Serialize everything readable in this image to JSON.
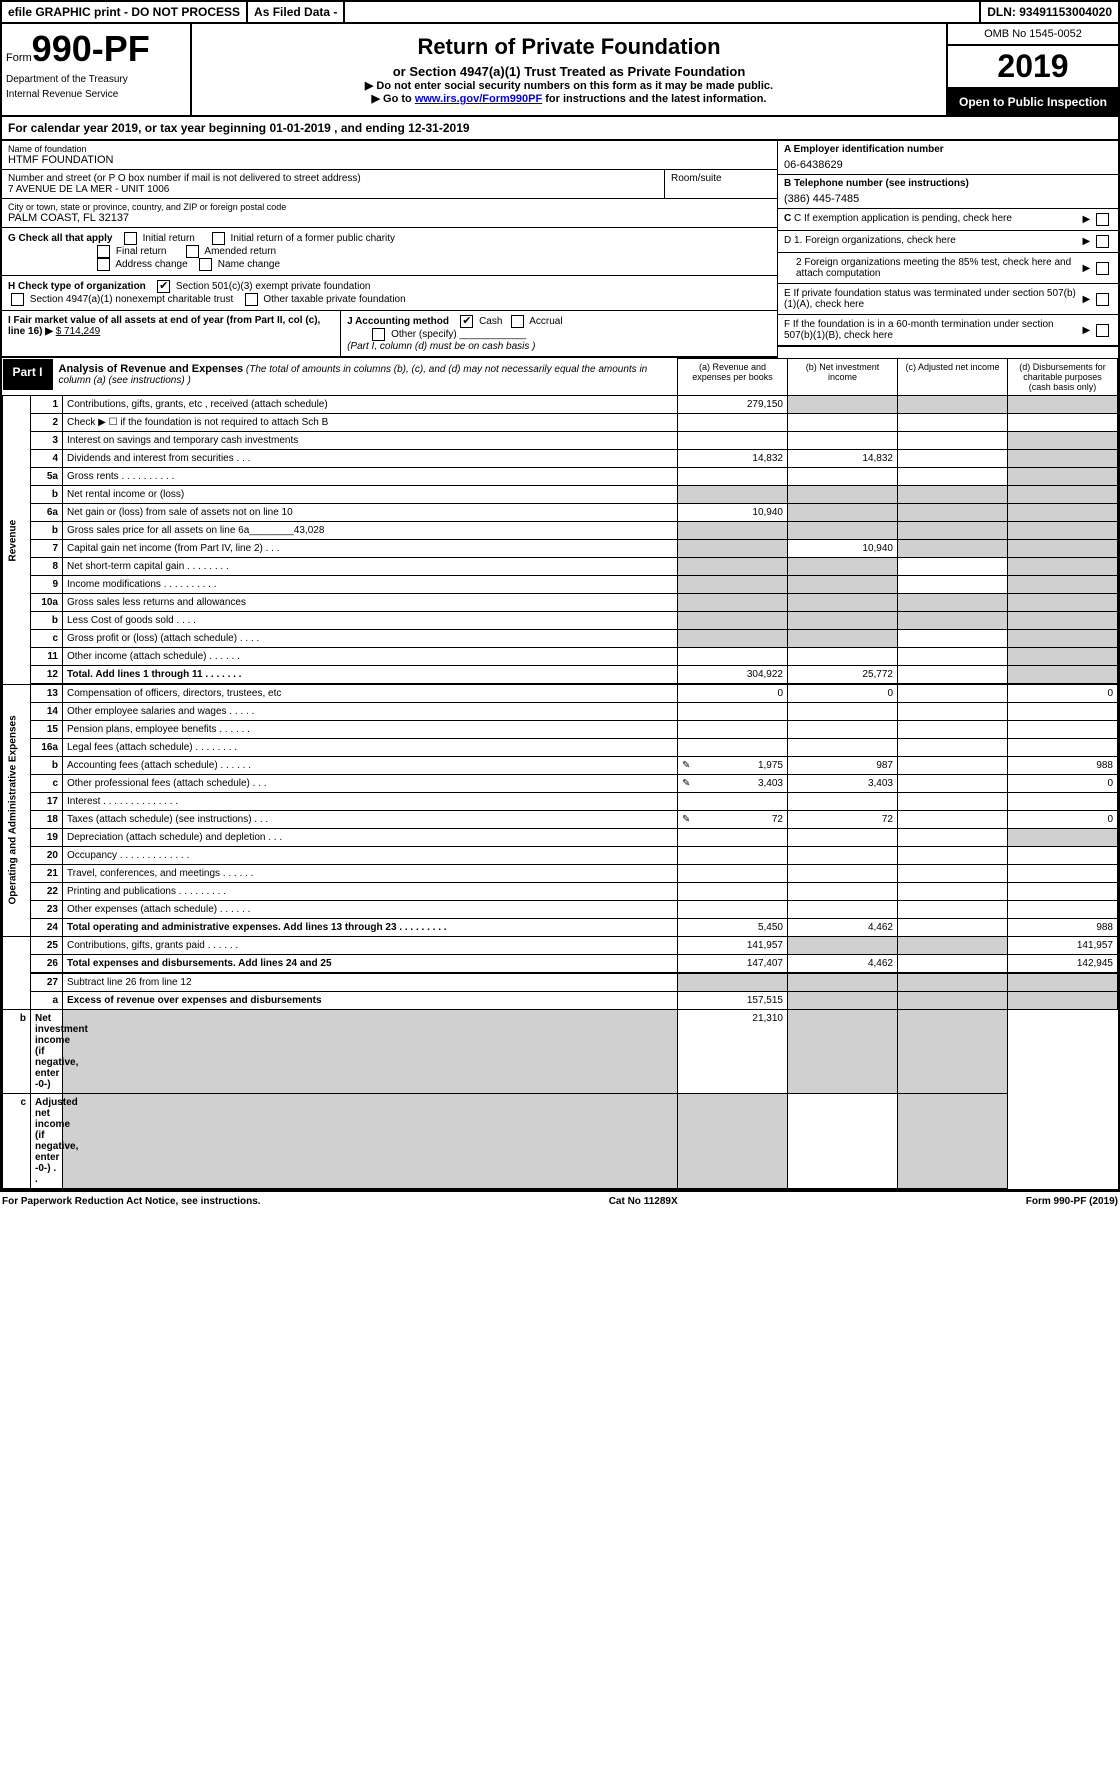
{
  "topbar": {
    "efile": "efile GRAPHIC print - DO NOT PROCESS",
    "as_filed": "As Filed Data -",
    "dln": "DLN: 93491153004020"
  },
  "header": {
    "form_prefix": "Form",
    "form_number": "990-PF",
    "dept1": "Department of the Treasury",
    "dept2": "Internal Revenue Service",
    "title": "Return of Private Foundation",
    "subtitle": "or Section 4947(a)(1) Trust Treated as Private Foundation",
    "inst1": "▶ Do not enter social security numbers on this form as it may be made public.",
    "inst2_pre": "▶ Go to ",
    "inst2_link": "www.irs.gov/Form990PF",
    "inst2_post": " for instructions and the latest information.",
    "omb": "OMB No 1545-0052",
    "year": "2019",
    "open": "Open to Public Inspection"
  },
  "cal_year": "For calendar year 2019, or tax year beginning 01-01-2019             , and ending 12-31-2019",
  "info": {
    "name_label": "Name of foundation",
    "name_value": "HTMF FOUNDATION",
    "ein_label": "A Employer identification number",
    "ein_value": "06-6438629",
    "addr_label": "Number and street (or P O  box number if mail is not delivered to street address)",
    "addr_value": "7 AVENUE DE LA MER - UNIT 1006",
    "room_label": "Room/suite",
    "phone_label": "B Telephone number (see instructions)",
    "phone_value": "(386) 445-7485",
    "city_label": "City or town, state or province, country, and ZIP or foreign postal code",
    "city_value": "PALM COAST, FL  32137",
    "c_label": "C If exemption application is pending, check here"
  },
  "g": {
    "label": "G Check all that apply",
    "initial": "Initial return",
    "initial_former": "Initial return of a former public charity",
    "final": "Final return",
    "amended": "Amended return",
    "addr_change": "Address change",
    "name_change": "Name change"
  },
  "h": {
    "label": "H Check type of organization",
    "opt1": "Section 501(c)(3) exempt private foundation",
    "opt2": "Section 4947(a)(1) nonexempt charitable trust",
    "opt3": "Other taxable private foundation"
  },
  "i": {
    "label": "I Fair market value of all assets at end of year (from Part II, col  (c), line 16) ▶",
    "value": "$  714,249"
  },
  "j": {
    "label": "J Accounting method",
    "cash": "Cash",
    "accrual": "Accrual",
    "other": "Other (specify)",
    "note": "(Part I, column (d) must be on cash basis )"
  },
  "right": {
    "d1": "D 1. Foreign organizations, check here",
    "d2": "2  Foreign organizations meeting the 85% test, check here and attach computation",
    "e": "E  If private foundation status was terminated under section 507(b)(1)(A), check here",
    "f": "F  If the foundation is in a 60-month termination under section 507(b)(1)(B), check here"
  },
  "part1": {
    "label": "Part I",
    "title": "Analysis of Revenue and Expenses",
    "desc": " (The total of amounts in columns (b), (c), and (d) may not necessarily equal the amounts in column (a) (see instructions) )",
    "cols": {
      "a": "(a) Revenue and expenses per books",
      "b": "(b) Net investment income",
      "c": "(c) Adjusted net income",
      "d": "(d) Disbursements for charitable purposes (cash basis only)"
    },
    "side_rev": "Revenue",
    "side_exp": "Operating and Administrative Expenses",
    "rows": [
      {
        "n": "1",
        "desc": "Contributions, gifts, grants, etc , received (attach schedule)",
        "a": "279,150",
        "b": "",
        "c": "",
        "d": "",
        "gb": true,
        "gc": true,
        "gd": true
      },
      {
        "n": "2",
        "desc": "Check ▶ ☐ if the foundation is not required to attach Sch  B",
        "nocols": true
      },
      {
        "n": "3",
        "desc": "Interest on savings and temporary cash investments",
        "a": "",
        "b": "",
        "c": "",
        "d": "",
        "gd": true
      },
      {
        "n": "4",
        "desc": "Dividends and interest from securities   .   .   .",
        "a": "14,832",
        "b": "14,832",
        "c": "",
        "d": "",
        "gd": true
      },
      {
        "n": "5a",
        "desc": "Gross rents       .   .   .   .   .   .   .   .   .   .",
        "a": "",
        "b": "",
        "c": "",
        "d": "",
        "gd": true
      },
      {
        "n": "b",
        "desc": "Net rental income or (loss)  ",
        "a": "",
        "b": "",
        "c": "",
        "d": "",
        "ga": true,
        "gb": true,
        "gc": true,
        "gd": true,
        "inline": true
      },
      {
        "n": "6a",
        "desc": "Net gain or (loss) from sale of assets not on line 10",
        "a": "10,940",
        "b": "",
        "c": "",
        "d": "",
        "gb": true,
        "gc": true,
        "gd": true
      },
      {
        "n": "b",
        "desc": "Gross sales price for all assets on line 6a________43,028",
        "a": "",
        "b": "",
        "c": "",
        "d": "",
        "ga": true,
        "gb": true,
        "gc": true,
        "gd": true
      },
      {
        "n": "7",
        "desc": "Capital gain net income (from Part IV, line 2)   .   .   .",
        "a": "",
        "b": "10,940",
        "c": "",
        "d": "",
        "ga": true,
        "gc": true,
        "gd": true
      },
      {
        "n": "8",
        "desc": "Net short-term capital gain  .   .   .   .   .   .   .   .",
        "a": "",
        "b": "",
        "c": "",
        "d": "",
        "ga": true,
        "gb": true,
        "gd": true
      },
      {
        "n": "9",
        "desc": "Income modifications .   .   .   .   .   .   .   .   .   .",
        "a": "",
        "b": "",
        "c": "",
        "d": "",
        "ga": true,
        "gb": true,
        "gd": true
      },
      {
        "n": "10a",
        "desc": "Gross sales less returns and allowances ",
        "a": "",
        "b": "",
        "c": "",
        "d": "",
        "ga": true,
        "gb": true,
        "gc": true,
        "gd": true,
        "inline": true
      },
      {
        "n": "b",
        "desc": "Less  Cost of goods sold    .   .   .   . ",
        "a": "",
        "b": "",
        "c": "",
        "d": "",
        "ga": true,
        "gb": true,
        "gc": true,
        "gd": true,
        "inline": true
      },
      {
        "n": "c",
        "desc": "Gross profit or (loss) (attach schedule)   .   .   .   .",
        "a": "",
        "b": "",
        "c": "",
        "d": "",
        "ga": true,
        "gb": true,
        "gd": true
      },
      {
        "n": "11",
        "desc": "Other income (attach schedule)    .   .   .   .   .   .",
        "a": "",
        "b": "",
        "c": "",
        "d": "",
        "gd": true
      },
      {
        "n": "12",
        "desc": "Total. Add lines 1 through 11   .   .   .   .   .   .   .",
        "bold": true,
        "a": "304,922",
        "b": "25,772",
        "c": "",
        "d": "",
        "gd": true
      },
      {
        "n": "13",
        "desc": "Compensation of officers, directors, trustees, etc",
        "a": "0",
        "b": "0",
        "c": "",
        "d": "0",
        "top": true
      },
      {
        "n": "14",
        "desc": "Other employee salaries and wages    .   .   .   .   .",
        "a": "",
        "b": "",
        "c": "",
        "d": ""
      },
      {
        "n": "15",
        "desc": "Pension plans, employee benefits  .   .   .   .   .   .",
        "a": "",
        "b": "",
        "c": "",
        "d": ""
      },
      {
        "n": "16a",
        "desc": "Legal fees (attach schedule) .   .   .   .   .   .   .   .",
        "a": "",
        "b": "",
        "c": "",
        "d": ""
      },
      {
        "n": "b",
        "desc": "Accounting fees (attach schedule) .   .   .   .   .   .",
        "icon": true,
        "a": "1,975",
        "b": "987",
        "c": "",
        "d": "988"
      },
      {
        "n": "c",
        "desc": "Other professional fees (attach schedule)   .   .   .",
        "icon": true,
        "a": "3,403",
        "b": "3,403",
        "c": "",
        "d": "0"
      },
      {
        "n": "17",
        "desc": "Interest  .   .   .   .   .   .   .   .   .   .   .   .   .   .",
        "a": "",
        "b": "",
        "c": "",
        "d": ""
      },
      {
        "n": "18",
        "desc": "Taxes (attach schedule) (see instructions)    .   .   .",
        "icon": true,
        "a": "72",
        "b": "72",
        "c": "",
        "d": "0"
      },
      {
        "n": "19",
        "desc": "Depreciation (attach schedule) and depletion   .   .   .",
        "a": "",
        "b": "",
        "c": "",
        "d": "",
        "gd": true
      },
      {
        "n": "20",
        "desc": "Occupancy   .   .   .   .   .   .   .   .   .   .   .   .   .",
        "a": "",
        "b": "",
        "c": "",
        "d": ""
      },
      {
        "n": "21",
        "desc": "Travel, conferences, and meetings .   .   .   .   .   .",
        "a": "",
        "b": "",
        "c": "",
        "d": ""
      },
      {
        "n": "22",
        "desc": "Printing and publications .   .   .   .   .   .   .   .   .",
        "a": "",
        "b": "",
        "c": "",
        "d": ""
      },
      {
        "n": "23",
        "desc": "Other expenses (attach schedule)  .   .   .   .   .   .",
        "a": "",
        "b": "",
        "c": "",
        "d": ""
      },
      {
        "n": "24",
        "desc": "Total operating and administrative expenses. Add lines 13 through 23  .   .   .   .   .   .   .   .   .",
        "bold": true,
        "a": "5,450",
        "b": "4,462",
        "c": "",
        "d": "988"
      },
      {
        "n": "25",
        "desc": "Contributions, gifts, grants paid     .   .   .   .   .   .",
        "a": "141,957",
        "b": "",
        "c": "",
        "d": "141,957",
        "gb": true,
        "gc": true
      },
      {
        "n": "26",
        "desc": "Total expenses and disbursements. Add lines 24 and 25",
        "bold": true,
        "a": "147,407",
        "b": "4,462",
        "c": "",
        "d": "142,945"
      },
      {
        "n": "27",
        "desc": "Subtract line 26 from line 12",
        "top": true,
        "a": "",
        "b": "",
        "c": "",
        "d": "",
        "ga": true,
        "gb": true,
        "gc": true,
        "gd": true
      },
      {
        "n": "a",
        "desc": "Excess of revenue over expenses and disbursements",
        "bold": true,
        "a": "157,515",
        "b": "",
        "c": "",
        "d": "",
        "gb": true,
        "gc": true,
        "gd": true
      },
      {
        "n": "b",
        "desc": "Net investment income (if negative, enter -0-)",
        "bold": true,
        "a": "",
        "b": "21,310",
        "c": "",
        "d": "",
        "ga": true,
        "gc": true,
        "gd": true
      },
      {
        "n": "c",
        "desc": "Adjusted net income (if negative, enter -0-)   .   .",
        "bold": true,
        "a": "",
        "b": "",
        "c": "",
        "d": "",
        "ga": true,
        "gb": true,
        "gd": true
      }
    ]
  },
  "footer": {
    "left": "For Paperwork Reduction Act Notice, see instructions.",
    "center": "Cat  No  11289X",
    "right": "Form 990-PF (2019)"
  }
}
